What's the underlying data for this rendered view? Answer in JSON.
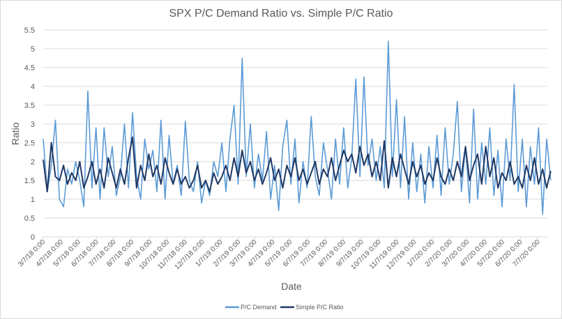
{
  "chart_data": {
    "type": "line",
    "title": "SPX P/C Demand Ratio vs. Simple P/C Ratio",
    "xlabel": "Date",
    "ylabel": "Ratio",
    "ylim": [
      0,
      5.5
    ],
    "yticks": [
      "0",
      "0.5",
      "1",
      "1.5",
      "2",
      "2.5",
      "3",
      "3.5",
      "4",
      "4.5",
      "5",
      "5.5"
    ],
    "grid": true,
    "legend_position": "bottom",
    "xtick_labels": [
      "3/7/18 0:00",
      "4/7/18 0:00",
      "5/7/18 0:00",
      "6/7/18 0:00",
      "7/7/18 0:00",
      "8/7/18 0:00",
      "9/7/18 0:00",
      "10/7/18 0:00",
      "11/7/18 0:00",
      "12/7/18 0:00",
      "1/7/19 0:00",
      "2/7/19 0:00",
      "3/7/19 0:00",
      "4/7/19 0:00",
      "5/7/19 0:00",
      "6/7/19 0:00",
      "7/7/19 0:00",
      "8/7/19 0:00",
      "9/7/19 0:00",
      "10/7/19 0:00",
      "11/7/19 0:00",
      "12/7/19 0:00",
      "1/7/20 0:00",
      "2/7/20 0:00",
      "3/7/20 0:00",
      "4/7/20 0:00",
      "5/7/20 0:00",
      "6/7/20 0:00",
      "7/7/20 0:00"
    ],
    "x": [
      "2018-03-07",
      "2018-03-14",
      "2018-03-21",
      "2018-03-28",
      "2018-04-04",
      "2018-04-11",
      "2018-04-18",
      "2018-04-25",
      "2018-05-02",
      "2018-05-09",
      "2018-05-16",
      "2018-05-23",
      "2018-05-30",
      "2018-06-06",
      "2018-06-13",
      "2018-06-20",
      "2018-06-27",
      "2018-07-04",
      "2018-07-11",
      "2018-07-18",
      "2018-07-25",
      "2018-08-01",
      "2018-08-08",
      "2018-08-15",
      "2018-08-22",
      "2018-08-29",
      "2018-09-05",
      "2018-09-12",
      "2018-09-19",
      "2018-09-26",
      "2018-10-03",
      "2018-10-10",
      "2018-10-17",
      "2018-10-24",
      "2018-10-31",
      "2018-11-07",
      "2018-11-14",
      "2018-11-21",
      "2018-11-28",
      "2018-12-05",
      "2018-12-12",
      "2018-12-19",
      "2018-12-26",
      "2019-01-02",
      "2019-01-09",
      "2019-01-16",
      "2019-01-23",
      "2019-01-30",
      "2019-02-06",
      "2019-02-13",
      "2019-02-20",
      "2019-02-27",
      "2019-03-06",
      "2019-03-13",
      "2019-03-20",
      "2019-03-27",
      "2019-04-03",
      "2019-04-10",
      "2019-04-17",
      "2019-04-24",
      "2019-05-01",
      "2019-05-08",
      "2019-05-15",
      "2019-05-22",
      "2019-05-29",
      "2019-06-05",
      "2019-06-12",
      "2019-06-19",
      "2019-06-26",
      "2019-07-03",
      "2019-07-10",
      "2019-07-17",
      "2019-07-24",
      "2019-07-31",
      "2019-08-07",
      "2019-08-14",
      "2019-08-21",
      "2019-08-28",
      "2019-09-04",
      "2019-09-11",
      "2019-09-18",
      "2019-09-25",
      "2019-10-02",
      "2019-10-09",
      "2019-10-16",
      "2019-10-23",
      "2019-10-30",
      "2019-11-06",
      "2019-11-13",
      "2019-11-20",
      "2019-11-27",
      "2019-12-04",
      "2019-12-11",
      "2019-12-18",
      "2019-12-25",
      "2020-01-01",
      "2020-01-08",
      "2020-01-15",
      "2020-01-22",
      "2020-01-29",
      "2020-02-05",
      "2020-02-12",
      "2020-02-19",
      "2020-02-26",
      "2020-03-04",
      "2020-03-11",
      "2020-03-18",
      "2020-03-25",
      "2020-04-01",
      "2020-04-08",
      "2020-04-15",
      "2020-04-22",
      "2020-04-29",
      "2020-05-06",
      "2020-05-13",
      "2020-05-20",
      "2020-05-27",
      "2020-06-03",
      "2020-06-10",
      "2020-06-17",
      "2020-06-24",
      "2020-07-01",
      "2020-07-08",
      "2020-07-15",
      "2020-07-22",
      "2020-07-29"
    ],
    "series": [
      {
        "name": "P/C Demand",
        "color": "#5b9bd5",
        "values": [
          2.6,
          1.2,
          1.9,
          3.1,
          1.0,
          0.8,
          1.8,
          1.4,
          2.0,
          1.5,
          0.8,
          3.88,
          1.3,
          2.9,
          1.0,
          2.9,
          1.6,
          2.4,
          1.1,
          1.6,
          3.0,
          1.3,
          3.3,
          1.6,
          1.0,
          2.6,
          1.8,
          2.3,
          1.2,
          3.1,
          1.0,
          2.7,
          1.4,
          1.9,
          1.1,
          3.07,
          1.5,
          1.2,
          2.0,
          0.9,
          1.5,
          1.1,
          2.0,
          1.6,
          2.5,
          1.2,
          2.6,
          3.5,
          1.4,
          4.75,
          1.6,
          3.0,
          1.3,
          2.2,
          1.5,
          2.8,
          1.0,
          1.9,
          0.7,
          2.4,
          3.1,
          1.4,
          2.6,
          0.9,
          2.0,
          1.3,
          3.2,
          1.6,
          1.1,
          2.5,
          1.8,
          1.0,
          2.6,
          1.4,
          2.9,
          1.3,
          2.1,
          4.2,
          1.6,
          4.25,
          1.9,
          2.6,
          1.5,
          2.4,
          1.3,
          5.2,
          1.6,
          3.65,
          1.3,
          3.2,
          1.0,
          2.5,
          1.2,
          2.2,
          0.9,
          2.4,
          1.3,
          2.7,
          1.1,
          2.9,
          1.4,
          2.2,
          3.6,
          1.2,
          2.4,
          0.9,
          3.4,
          1.0,
          2.5,
          1.4,
          2.9,
          1.1,
          2.3,
          0.8,
          2.6,
          1.5,
          4.05,
          1.2,
          2.6,
          0.8,
          2.4,
          1.4,
          2.9,
          0.6,
          2.6,
          1.5
        ]
      },
      {
        "name": "Simple P/C Ratio",
        "color": "#203864",
        "values": [
          2.05,
          1.2,
          2.5,
          1.6,
          1.5,
          1.9,
          1.4,
          1.7,
          1.5,
          2.0,
          1.3,
          1.6,
          2.0,
          1.4,
          1.8,
          1.3,
          2.1,
          1.7,
          1.3,
          1.8,
          1.4,
          2.1,
          2.65,
          1.3,
          1.9,
          1.5,
          2.2,
          1.6,
          1.9,
          1.4,
          2.1,
          1.7,
          1.4,
          1.8,
          1.4,
          1.6,
          1.3,
          1.5,
          1.9,
          1.3,
          1.5,
          1.2,
          1.7,
          1.4,
          1.6,
          1.9,
          1.5,
          2.1,
          1.6,
          2.3,
          1.7,
          2.0,
          1.5,
          1.8,
          1.4,
          1.7,
          2.1,
          1.5,
          1.8,
          1.3,
          1.9,
          1.6,
          2.1,
          1.5,
          1.8,
          1.4,
          1.7,
          2.0,
          1.4,
          1.8,
          1.6,
          2.1,
          1.5,
          1.9,
          2.3,
          2.0,
          2.2,
          1.7,
          2.4,
          1.9,
          2.2,
          1.6,
          2.0,
          1.5,
          2.55,
          1.3,
          2.1,
          1.6,
          2.2,
          1.8,
          1.4,
          2.0,
          1.6,
          1.9,
          1.4,
          1.7,
          1.5,
          2.1,
          1.6,
          1.4,
          1.8,
          1.5,
          2.0,
          1.6,
          2.4,
          1.5,
          1.9,
          2.2,
          1.4,
          2.4,
          1.6,
          2.1,
          1.3,
          1.7,
          1.5,
          2.0,
          1.4,
          1.6,
          1.3,
          1.9,
          1.5,
          2.1,
          1.4,
          1.8,
          1.3,
          1.75
        ]
      }
    ]
  }
}
